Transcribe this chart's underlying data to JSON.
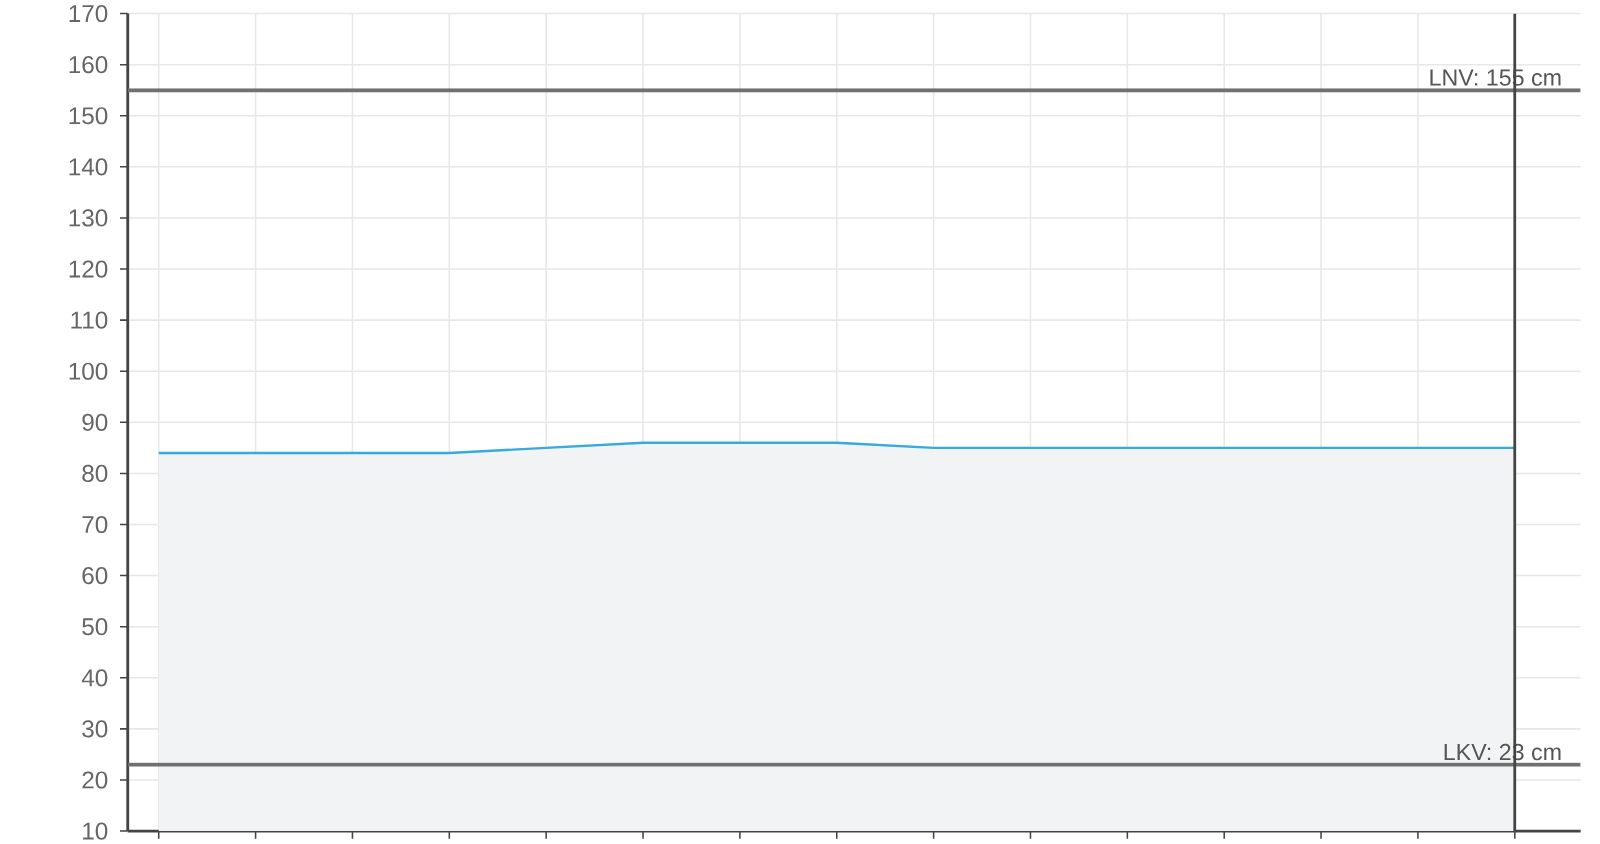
{
  "chart_data": {
    "type": "area",
    "categories": [
      null,
      null,
      null,
      null,
      null,
      null,
      null,
      null,
      null,
      null,
      null,
      null,
      null,
      null,
      null
    ],
    "values": [
      84,
      84,
      84,
      84,
      85,
      86,
      86,
      86,
      85,
      85,
      85,
      85,
      85,
      85,
      85
    ],
    "color": "#36a9e1",
    "ylim": [
      10,
      170
    ],
    "yticks": [
      10,
      20,
      30,
      40,
      50,
      60,
      70,
      80,
      90,
      100,
      110,
      120,
      130,
      140,
      150,
      160,
      170
    ],
    "grid": true,
    "tick_labels": "y",
    "ref_lines": [
      {
        "axis": "y",
        "value": 155,
        "label": "LNV: 155 cm",
        "color": "#707070"
      },
      {
        "axis": "y",
        "value": 23,
        "label": "LKV: 23 cm",
        "color": "#707070"
      }
    ]
  }
}
